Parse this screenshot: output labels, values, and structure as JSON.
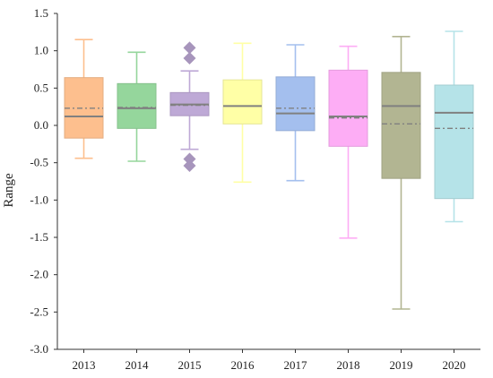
{
  "chart_data": {
    "type": "box",
    "ylabel": "Range",
    "ylim": [
      -3.0,
      1.5
    ],
    "yticks": [
      "1.5",
      "1.0",
      "0.5",
      "0.0",
      "-0.5",
      "-1.0",
      "-1.5",
      "-2.0",
      "-2.5",
      "-3.0"
    ],
    "ytick_values": [
      1.5,
      1.0,
      0.5,
      0.0,
      -0.5,
      -1.0,
      -1.5,
      -2.0,
      -2.5,
      -3.0
    ],
    "categories": [
      "2013",
      "2014",
      "2015",
      "2016",
      "2017",
      "2018",
      "2019",
      "2020"
    ],
    "grid": false,
    "median_line_color": "#808080",
    "mean_line_style": "dash-dot",
    "boxes": [
      {
        "category": "2013",
        "whisker_low": -0.44,
        "q1": -0.17,
        "median": 0.12,
        "mean": 0.23,
        "q3": 0.64,
        "whisker_high": 1.15,
        "outliers": [],
        "color": "#FDBF8E"
      },
      {
        "category": "2014",
        "whisker_low": -0.48,
        "q1": -0.04,
        "median": 0.23,
        "mean": 0.24,
        "q3": 0.56,
        "whisker_high": 0.98,
        "outliers": [],
        "color": "#95D69C"
      },
      {
        "category": "2015",
        "whisker_low": -0.32,
        "q1": 0.13,
        "median": 0.28,
        "mean": 0.27,
        "q3": 0.44,
        "whisker_high": 0.73,
        "outliers": [
          1.04,
          0.9,
          -0.45,
          -0.54
        ],
        "color": "#BEA9D6"
      },
      {
        "category": "2016",
        "whisker_low": -0.76,
        "q1": 0.02,
        "median": 0.26,
        "mean": 0.26,
        "q3": 0.61,
        "whisker_high": 1.1,
        "outliers": [],
        "color": "#FFFFA6"
      },
      {
        "category": "2017",
        "whisker_low": -0.74,
        "q1": -0.07,
        "median": 0.16,
        "mean": 0.23,
        "q3": 0.65,
        "whisker_high": 1.08,
        "outliers": [],
        "color": "#A4BFEE"
      },
      {
        "category": "2018",
        "whisker_low": -1.51,
        "q1": -0.28,
        "median": 0.12,
        "mean": 0.1,
        "q3": 0.74,
        "whisker_high": 1.06,
        "outliers": [],
        "color": "#FDADF5"
      },
      {
        "category": "2019",
        "whisker_low": -2.46,
        "q1": -0.71,
        "median": 0.26,
        "mean": 0.02,
        "q3": 0.71,
        "whisker_high": 1.19,
        "outliers": [],
        "color": "#B2B592"
      },
      {
        "category": "2020",
        "whisker_low": -1.29,
        "q1": -0.98,
        "median": 0.17,
        "mean": -0.04,
        "q3": 0.54,
        "whisker_high": 1.26,
        "outliers": [],
        "color": "#B5E3E8"
      }
    ]
  }
}
